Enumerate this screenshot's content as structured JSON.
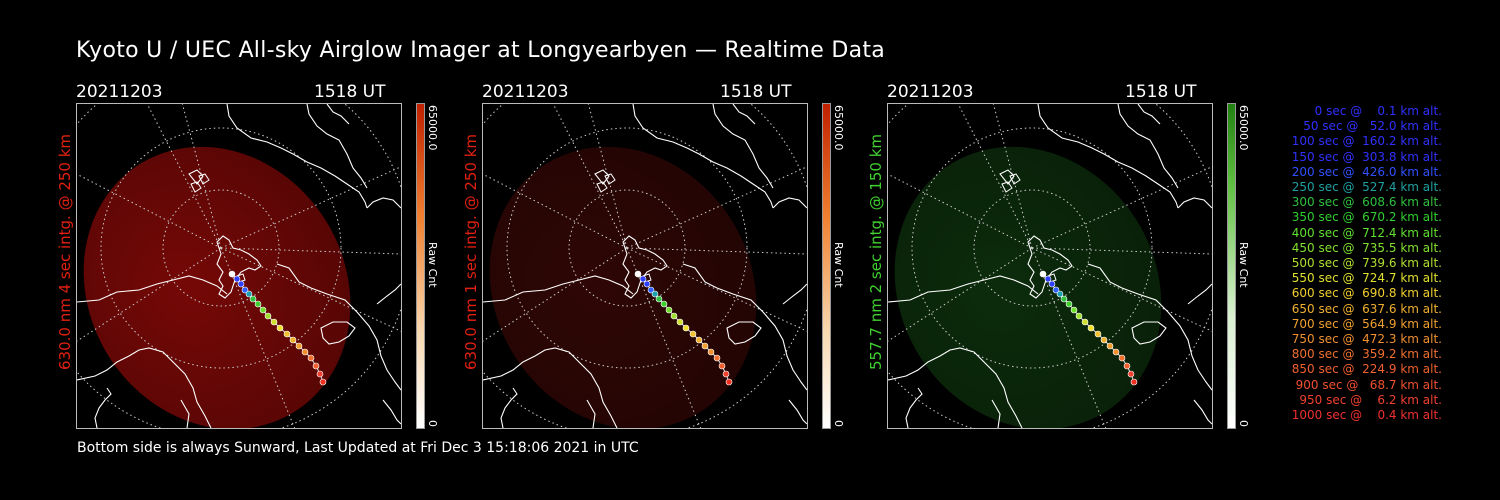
{
  "title": "Kyoto U / UEC All-sky Airglow Imager at Longyearbyen — Realtime Data",
  "footer": "Bottom side is always Sunward, Last Updated at Fri Dec  3 15:18:06 2021 in UTC",
  "panels": [
    {
      "date": "20211203",
      "time": "1518 UT",
      "side_label": "630.0 nm 4 sec intg. @ 250 km",
      "label_color": "#e02010",
      "glow_color": "#8a0a08",
      "glow_opacity": 0.85,
      "cbar_max": "65000.0",
      "cbar_min": "0",
      "cbar_unit": "Raw Cnt",
      "cbar_type": "red"
    },
    {
      "date": "20211203",
      "time": "1518 UT",
      "side_label": "630.0 nm 1 sec intg. @ 250 km",
      "label_color": "#e02010",
      "glow_color": "#3a0806",
      "glow_opacity": 0.8,
      "cbar_max": "65000.0",
      "cbar_min": "0",
      "cbar_unit": "Raw Cnt",
      "cbar_type": "red"
    },
    {
      "date": "20211203",
      "time": "1518 UT",
      "side_label": "557.7 nm 2 sec intg. @ 150 km",
      "label_color": "#40d030",
      "glow_color": "#103a10",
      "glow_opacity": 0.75,
      "cbar_max": "65000.0",
      "cbar_min": "0",
      "cbar_unit": "Raw Cnt",
      "cbar_type": "green"
    }
  ],
  "legend": [
    {
      "text": "  0 sec @    0.1 km alt.",
      "color": "#3030ff"
    },
    {
      "text": " 50 sec @   52.0 km alt.",
      "color": "#3030ff"
    },
    {
      "text": "100 sec @  160.2 km alt.",
      "color": "#3030ff"
    },
    {
      "text": "150 sec @  303.8 km alt.",
      "color": "#3030ff"
    },
    {
      "text": "200 sec @  426.0 km alt.",
      "color": "#3050ff"
    },
    {
      "text": "250 sec @  527.4 km alt.",
      "color": "#1fa0a0"
    },
    {
      "text": "300 sec @  608.6 km alt.",
      "color": "#30c040"
    },
    {
      "text": "350 sec @  670.2 km alt.",
      "color": "#30d030"
    },
    {
      "text": "400 sec @  712.4 km alt.",
      "color": "#60e030"
    },
    {
      "text": "450 sec @  735.5 km alt.",
      "color": "#80e030"
    },
    {
      "text": "500 sec @  739.6 km alt.",
      "color": "#b0e030"
    },
    {
      "text": "550 sec @  724.7 km alt.",
      "color": "#e0e030"
    },
    {
      "text": "600 sec @  690.8 km alt.",
      "color": "#f0d030"
    },
    {
      "text": "650 sec @  637.6 km alt.",
      "color": "#f0b030"
    },
    {
      "text": "700 sec @  564.9 km alt.",
      "color": "#f0a030"
    },
    {
      "text": "750 sec @  472.3 km alt.",
      "color": "#f09030"
    },
    {
      "text": "800 sec @  359.2 km alt.",
      "color": "#f07030"
    },
    {
      "text": "850 sec @  224.9 km alt.",
      "color": "#f06030"
    },
    {
      "text": "900 sec @   68.7 km alt.",
      "color": "#f05030"
    },
    {
      "text": "950 sec @    6.2 km alt.",
      "color": "#f04030"
    },
    {
      "text": "1000 sec @    0.4 km alt.",
      "color": "#f03030"
    }
  ]
}
